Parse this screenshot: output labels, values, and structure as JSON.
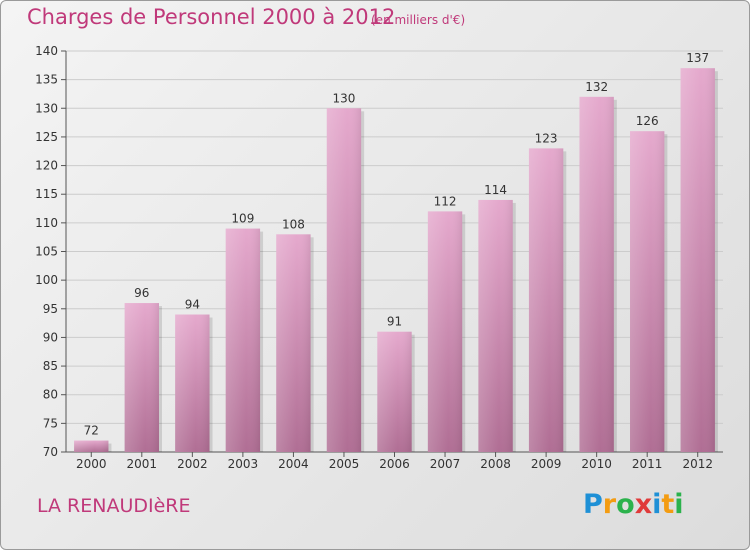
{
  "title": "Charges de Personnel 2000 à 2012",
  "subtitle": "(en milliers d'€)",
  "commune": "LA RENAUDIèRE",
  "logo": {
    "text": "Proxiti",
    "letters": [
      {
        "char": "P",
        "color": "#1e90d6"
      },
      {
        "char": "r",
        "color": "#f39c12"
      },
      {
        "char": "o",
        "color": "#2bb24c"
      },
      {
        "char": "x",
        "color": "#e03a3a"
      },
      {
        "char": "i",
        "color": "#1e90d6"
      },
      {
        "char": "t",
        "color": "#f39c12"
      },
      {
        "char": "i",
        "color": "#2bb24c"
      }
    ]
  },
  "colors": {
    "bar_top": "#e5a9cd",
    "bar_bottom": "#b06e94",
    "accent": "#c0397a",
    "grid": "#cccccc"
  },
  "chart_data": {
    "type": "bar",
    "title": "Charges de Personnel 2000 à 2012",
    "subtitle": "(en milliers d'€)",
    "xlabel": "",
    "ylabel": "",
    "categories": [
      "2000",
      "2001",
      "2002",
      "2003",
      "2004",
      "2005",
      "2006",
      "2007",
      "2008",
      "2009",
      "2010",
      "2011",
      "2012"
    ],
    "values": [
      72,
      96,
      94,
      109,
      108,
      130,
      91,
      112,
      114,
      123,
      132,
      126,
      137
    ],
    "ylim": [
      70,
      140
    ],
    "yticks": [
      70,
      75,
      80,
      85,
      90,
      95,
      100,
      105,
      110,
      115,
      120,
      125,
      130,
      135,
      140
    ],
    "grid": true,
    "data_labels": true
  }
}
